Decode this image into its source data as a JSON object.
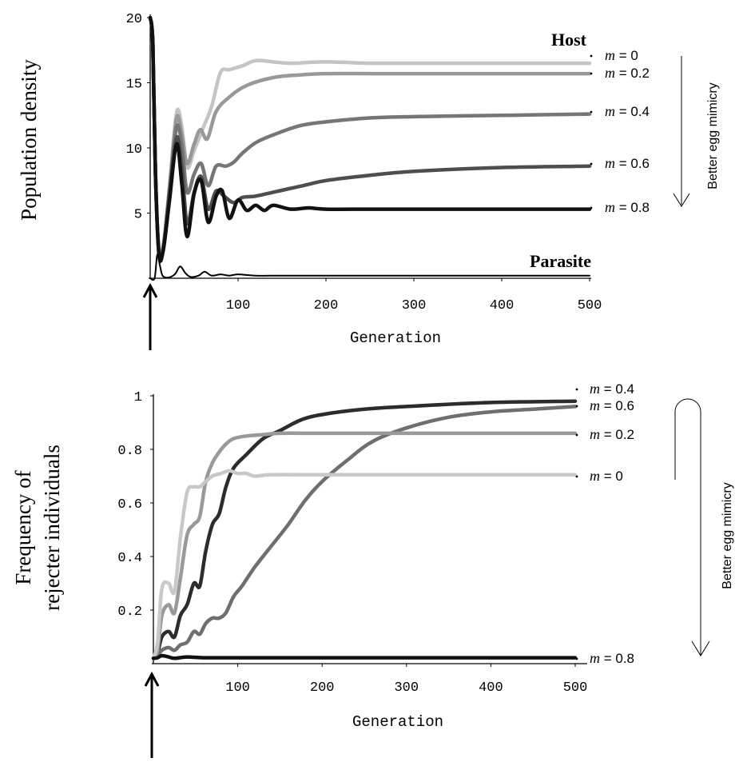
{
  "chart_data": [
    {
      "type": "line",
      "ylabel": "Population density",
      "xlabel": "Generation",
      "xlim": [
        0,
        500
      ],
      "ylim": [
        0,
        20
      ],
      "xticks": [
        100,
        200,
        300,
        400,
        500
      ],
      "yticks": [
        5,
        10,
        15,
        20
      ],
      "grid": false,
      "group_labels": {
        "host": "Host",
        "parasite": "Parasite"
      },
      "side_label": "Better egg mimicry",
      "series": [
        {
          "name": "m = 0",
          "m": "m",
          "eq": " = 0",
          "color": "#c4c4c4",
          "width": 4.5,
          "points": [
            [
              0,
              20
            ],
            [
              3,
              18
            ],
            [
              6,
              8
            ],
            [
              10,
              2.2
            ],
            [
              15,
              2.6
            ],
            [
              22,
              7
            ],
            [
              30,
              12.7
            ],
            [
              36,
              11.6
            ],
            [
              42,
              8.5
            ],
            [
              50,
              9.8
            ],
            [
              60,
              11.5
            ],
            [
              70,
              13.2
            ],
            [
              80,
              15.8
            ],
            [
              90,
              16
            ],
            [
              105,
              16.3
            ],
            [
              120,
              16.7
            ],
            [
              140,
              16.6
            ],
            [
              160,
              16.5
            ],
            [
              200,
              16.6
            ],
            [
              250,
              16.5
            ],
            [
              300,
              16.5
            ],
            [
              400,
              16.5
            ],
            [
              500,
              16.5
            ]
          ]
        },
        {
          "name": "m = 0.2",
          "m": "m",
          "eq": " = 0.2",
          "color": "#999999",
          "width": 4.5,
          "points": [
            [
              0,
              20
            ],
            [
              3,
              18
            ],
            [
              6,
              8
            ],
            [
              10,
              2.1
            ],
            [
              15,
              2.5
            ],
            [
              22,
              7
            ],
            [
              30,
              12.3
            ],
            [
              36,
              11
            ],
            [
              42,
              8.8
            ],
            [
              50,
              10.3
            ],
            [
              57,
              11.4
            ],
            [
              65,
              10.7
            ],
            [
              75,
              12.8
            ],
            [
              90,
              13.9
            ],
            [
              110,
              14.8
            ],
            [
              140,
              15.4
            ],
            [
              170,
              15.6
            ],
            [
              200,
              15.7
            ],
            [
              250,
              15.7
            ],
            [
              300,
              15.7
            ],
            [
              400,
              15.7
            ],
            [
              500,
              15.7
            ]
          ]
        },
        {
          "name": "m = 0.4",
          "m": "m",
          "eq": " = 0.4",
          "color": "#767676",
          "width": 4.5,
          "points": [
            [
              0,
              20
            ],
            [
              3,
              18
            ],
            [
              6,
              8
            ],
            [
              10,
              2
            ],
            [
              15,
              2.4
            ],
            [
              22,
              6.8
            ],
            [
              30,
              11.6
            ],
            [
              36,
              10.2
            ],
            [
              42,
              6.6
            ],
            [
              50,
              8
            ],
            [
              58,
              8.8
            ],
            [
              66,
              7.1
            ],
            [
              75,
              8.6
            ],
            [
              86,
              8.6
            ],
            [
              95,
              8.9
            ],
            [
              105,
              9.6
            ],
            [
              120,
              10.4
            ],
            [
              140,
              11
            ],
            [
              170,
              11.7
            ],
            [
              200,
              12
            ],
            [
              250,
              12.3
            ],
            [
              300,
              12.4
            ],
            [
              400,
              12.5
            ],
            [
              500,
              12.6
            ]
          ]
        },
        {
          "name": "m = 0.6",
          "m": "m",
          "eq": " = 0.6",
          "color": "#4e4e4e",
          "width": 4.5,
          "points": [
            [
              0,
              20
            ],
            [
              3,
              18
            ],
            [
              6,
              8
            ],
            [
              10,
              1.9
            ],
            [
              15,
              2.3
            ],
            [
              22,
              6.5
            ],
            [
              30,
              10.8
            ],
            [
              36,
              8.6
            ],
            [
              42,
              4.2
            ],
            [
              50,
              6.6
            ],
            [
              58,
              7.8
            ],
            [
              66,
              5.3
            ],
            [
              75,
              6.7
            ],
            [
              84,
              6.3
            ],
            [
              95,
              5.8
            ],
            [
              105,
              6.2
            ],
            [
              120,
              6.3
            ],
            [
              140,
              6.6
            ],
            [
              160,
              6.9
            ],
            [
              180,
              7.2
            ],
            [
              200,
              7.5
            ],
            [
              250,
              7.9
            ],
            [
              300,
              8.2
            ],
            [
              400,
              8.5
            ],
            [
              500,
              8.6
            ]
          ]
        },
        {
          "name": "m = 0.8",
          "m": "m",
          "eq": " = 0.8",
          "color": "#111111",
          "width": 4.5,
          "points": [
            [
              0,
              20
            ],
            [
              3,
              18
            ],
            [
              6,
              8
            ],
            [
              10,
              1.8
            ],
            [
              15,
              2.2
            ],
            [
              22,
              6
            ],
            [
              30,
              10.3
            ],
            [
              36,
              7.2
            ],
            [
              42,
              3.2
            ],
            [
              50,
              6.5
            ],
            [
              58,
              7.5
            ],
            [
              66,
              4.3
            ],
            [
              75,
              6.3
            ],
            [
              82,
              6.7
            ],
            [
              90,
              4.6
            ],
            [
              100,
              6
            ],
            [
              110,
              5.2
            ],
            [
              120,
              5.6
            ],
            [
              130,
              5.2
            ],
            [
              140,
              5.6
            ],
            [
              160,
              5.3
            ],
            [
              180,
              5.4
            ],
            [
              200,
              5.3
            ],
            [
              250,
              5.3
            ],
            [
              300,
              5.3
            ],
            [
              400,
              5.3
            ],
            [
              500,
              5.3
            ]
          ]
        },
        {
          "name": "Parasite",
          "color": "#000000",
          "width": 2,
          "points": [
            [
              0,
              0
            ],
            [
              5,
              0
            ],
            [
              8,
              1.8
            ],
            [
              11,
              1
            ],
            [
              14,
              0.2
            ],
            [
              20,
              0.05
            ],
            [
              28,
              0.3
            ],
            [
              34,
              0.9
            ],
            [
              40,
              0.4
            ],
            [
              46,
              0.1
            ],
            [
              55,
              0.2
            ],
            [
              62,
              0.5
            ],
            [
              70,
              0.2
            ],
            [
              80,
              0.3
            ],
            [
              90,
              0.2
            ],
            [
              100,
              0.3
            ],
            [
              120,
              0.2
            ],
            [
              150,
              0.2
            ],
            [
              200,
              0.2
            ],
            [
              300,
              0.2
            ],
            [
              500,
              0.2
            ]
          ]
        }
      ]
    },
    {
      "type": "line",
      "ylabel_lines": [
        "Frequency of",
        "rejecter individuals"
      ],
      "xlabel": "Generation",
      "xlim": [
        0,
        500
      ],
      "ylim": [
        0,
        1
      ],
      "xticks": [
        100,
        200,
        300,
        400,
        500
      ],
      "yticks": [
        0.2,
        0.4,
        0.6,
        0.8,
        1
      ],
      "ytick_labels": [
        "0.2",
        "0.4",
        "0.6",
        "0.8",
        "1"
      ],
      "grid": false,
      "side_label": "Better egg mimicry",
      "series": [
        {
          "name": "m = 0.4",
          "m": "m",
          "eq": " = 0.4",
          "color": "#2c2c2c",
          "width": 4.5,
          "points": [
            [
              0,
              0.02
            ],
            [
              5,
              0.04
            ],
            [
              10,
              0.1
            ],
            [
              18,
              0.12
            ],
            [
              25,
              0.1
            ],
            [
              32,
              0.18
            ],
            [
              40,
              0.22
            ],
            [
              48,
              0.3
            ],
            [
              55,
              0.29
            ],
            [
              62,
              0.42
            ],
            [
              70,
              0.52
            ],
            [
              78,
              0.56
            ],
            [
              86,
              0.66
            ],
            [
              95,
              0.73
            ],
            [
              110,
              0.78
            ],
            [
              130,
              0.84
            ],
            [
              150,
              0.87
            ],
            [
              175,
              0.91
            ],
            [
              200,
              0.93
            ],
            [
              250,
              0.95
            ],
            [
              300,
              0.96
            ],
            [
              400,
              0.975
            ],
            [
              500,
              0.98
            ]
          ]
        },
        {
          "name": "m = 0.6",
          "m": "m",
          "eq": " = 0.6",
          "color": "#6f6f6f",
          "width": 4.5,
          "points": [
            [
              0,
              0.02
            ],
            [
              5,
              0.03
            ],
            [
              10,
              0.05
            ],
            [
              18,
              0.06
            ],
            [
              25,
              0.05
            ],
            [
              32,
              0.07
            ],
            [
              40,
              0.08
            ],
            [
              48,
              0.12
            ],
            [
              55,
              0.11
            ],
            [
              62,
              0.15
            ],
            [
              70,
              0.17
            ],
            [
              78,
              0.17
            ],
            [
              86,
              0.19
            ],
            [
              95,
              0.25
            ],
            [
              105,
              0.29
            ],
            [
              120,
              0.36
            ],
            [
              140,
              0.44
            ],
            [
              160,
              0.52
            ],
            [
              180,
              0.61
            ],
            [
              200,
              0.68
            ],
            [
              230,
              0.76
            ],
            [
              260,
              0.83
            ],
            [
              300,
              0.88
            ],
            [
              350,
              0.92
            ],
            [
              400,
              0.94
            ],
            [
              450,
              0.95
            ],
            [
              500,
              0.96
            ]
          ]
        },
        {
          "name": "m = 0.2",
          "m": "m",
          "eq": " = 0.2",
          "color": "#999999",
          "width": 4.5,
          "points": [
            [
              0,
              0.02
            ],
            [
              5,
              0.05
            ],
            [
              10,
              0.18
            ],
            [
              18,
              0.22
            ],
            [
              25,
              0.19
            ],
            [
              32,
              0.32
            ],
            [
              40,
              0.48
            ],
            [
              48,
              0.52
            ],
            [
              55,
              0.55
            ],
            [
              62,
              0.68
            ],
            [
              70,
              0.75
            ],
            [
              78,
              0.79
            ],
            [
              86,
              0.82
            ],
            [
              95,
              0.84
            ],
            [
              110,
              0.85
            ],
            [
              130,
              0.855
            ],
            [
              150,
              0.86
            ],
            [
              200,
              0.86
            ],
            [
              300,
              0.86
            ],
            [
              400,
              0.86
            ],
            [
              500,
              0.86
            ]
          ]
        },
        {
          "name": "m = 0",
          "m": "m",
          "eq": " = 0",
          "color": "#c8c8c8",
          "width": 4.5,
          "points": [
            [
              0,
              0.02
            ],
            [
              5,
              0.08
            ],
            [
              10,
              0.28
            ],
            [
              18,
              0.3
            ],
            [
              25,
              0.27
            ],
            [
              32,
              0.47
            ],
            [
              40,
              0.64
            ],
            [
              48,
              0.66
            ],
            [
              55,
              0.66
            ],
            [
              62,
              0.68
            ],
            [
              70,
              0.7
            ],
            [
              80,
              0.71
            ],
            [
              90,
              0.72
            ],
            [
              100,
              0.71
            ],
            [
              110,
              0.71
            ],
            [
              120,
              0.7
            ],
            [
              140,
              0.705
            ],
            [
              200,
              0.705
            ],
            [
              300,
              0.705
            ],
            [
              500,
              0.705
            ]
          ]
        },
        {
          "name": "m = 0.8",
          "m": "m",
          "eq": " = 0.8",
          "color": "#111111",
          "width": 4.5,
          "points": [
            [
              0,
              0.02
            ],
            [
              5,
              0.022
            ],
            [
              10,
              0.03
            ],
            [
              18,
              0.025
            ],
            [
              25,
              0.02
            ],
            [
              40,
              0.025
            ],
            [
              60,
              0.022
            ],
            [
              100,
              0.022
            ],
            [
              200,
              0.022
            ],
            [
              300,
              0.022
            ],
            [
              400,
              0.022
            ],
            [
              500,
              0.022
            ]
          ]
        }
      ]
    }
  ]
}
